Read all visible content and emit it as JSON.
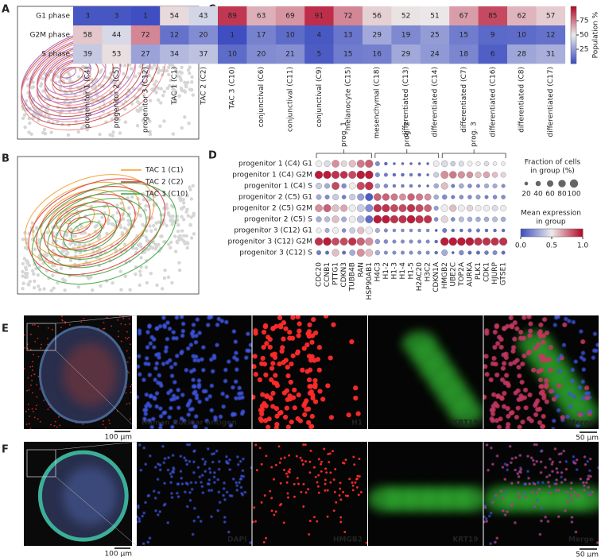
{
  "panel_labels": [
    "A",
    "B",
    "C",
    "D",
    "E",
    "F"
  ],
  "chart_data": [
    {
      "type": "density",
      "series": [
        {
          "name": "progenitor 1 (C4)",
          "color": "#a85bbf"
        },
        {
          "name": "progenitor 2 (C5)",
          "color": "#c2413b"
        },
        {
          "name": "progenitor 3 (C12)",
          "color": "#e98a8a"
        }
      ]
    },
    {
      "type": "density",
      "series": [
        {
          "name": "TAC 1 (C1)",
          "color": "#f0a030"
        },
        {
          "name": "TAC 2 (C2)",
          "color": "#d83030"
        },
        {
          "name": "TAC 3 (C10)",
          "color": "#3aa43a"
        }
      ]
    },
    {
      "type": "heatmap",
      "rows": [
        "G1 phase",
        "G2M phase",
        "S phase"
      ],
      "columns": [
        "progenitor 1 (C4)",
        "progenitor 2 (C5)",
        "progenitor 3 (C12)",
        "TAC 1 (C1)",
        "TAC 2 (C2)",
        "TAC 3 (C10)",
        "conjunctival (C6)",
        "conjunctival (C11)",
        "conjunctival (C9)",
        "melanocyte (C15)",
        "mesenchymal (C18)",
        "differentiated (C13)",
        "differentiated (C14)",
        "differentiated (C7)",
        "differentiated (C16)",
        "differentiated (C8)",
        "differentiated (C17)"
      ],
      "values": [
        [
          3,
          3,
          1,
          54,
          43,
          89,
          63,
          69,
          91,
          72,
          56,
          52,
          51,
          67,
          85,
          62,
          57
        ],
        [
          58,
          44,
          72,
          12,
          20,
          1,
          17,
          10,
          4,
          13,
          29,
          19,
          25,
          15,
          9,
          10,
          12
        ],
        [
          39,
          53,
          27,
          34,
          37,
          10,
          20,
          21,
          5,
          15,
          16,
          29,
          24,
          18,
          6,
          28,
          31
        ]
      ],
      "clim": [
        0,
        100
      ],
      "colorbar_ticks": [
        25,
        50,
        75
      ],
      "colorbar_label": "Population %"
    },
    {
      "type": "dotplot",
      "rows": [
        "progenitor 1 (C4) G1",
        "progenitor 1 (C4) G2M",
        "progenitor 1 (C4) S",
        "progenitor 2 (C5) G1",
        "progenitor 2 (C5) G2M",
        "progenitor 2 (C5) S",
        "progenitor 3 (C12) G1",
        "progenitor 3 (C12) G2M",
        "progenitor 3 (C12) S"
      ],
      "groups": [
        {
          "label": "prog. 1",
          "genes": [
            "CDC20",
            "CCNB1",
            "PTTG1",
            "CDKN3",
            "TUBB4B",
            "RAN",
            "HSP90AB1"
          ]
        },
        {
          "label": "prog. 2",
          "genes": [
            "H4C3",
            "H1-2",
            "H1-3",
            "H1-4",
            "H1-5",
            "H2AC20",
            "H3C2",
            "CDKN1A"
          ]
        },
        {
          "label": "prog. 3",
          "genes": [
            "HMGB2",
            "UBE2C",
            "TOP2A",
            "AURKA",
            "PLK1",
            "CDK1",
            "HJURP",
            "GTSE1"
          ]
        }
      ],
      "expression": [
        [
          0.5,
          0.45,
          0.7,
          0.55,
          0.6,
          0.75,
          0.8,
          0.2,
          0.1,
          0.1,
          0.1,
          0.1,
          0.1,
          0.1,
          0.5,
          0.45,
          0.4,
          0.45,
          0.5,
          0.5,
          0.45,
          0.5,
          0.5
        ],
        [
          0.95,
          0.95,
          0.9,
          0.9,
          0.85,
          0.95,
          0.95,
          0.2,
          0.15,
          0.1,
          0.1,
          0.15,
          0.1,
          0.1,
          0.4,
          0.7,
          0.75,
          0.7,
          0.7,
          0.6,
          0.65,
          0.6,
          0.55
        ],
        [
          0.4,
          0.3,
          0.85,
          0.2,
          0.5,
          0.85,
          0.9,
          0.3,
          0.2,
          0.15,
          0.15,
          0.15,
          0.1,
          0.1,
          0.3,
          0.6,
          0.15,
          0.3,
          0.2,
          0.2,
          0.3,
          0.3,
          0.2
        ],
        [
          0.3,
          0.2,
          0.4,
          0.15,
          0.4,
          0.25,
          0.05,
          0.8,
          0.8,
          0.75,
          0.7,
          0.8,
          0.75,
          0.7,
          0.3,
          0.2,
          0.15,
          0.2,
          0.2,
          0.25,
          0.15,
          0.2,
          0.2
        ],
        [
          0.7,
          0.8,
          0.6,
          0.65,
          0.5,
          0.4,
          0.2,
          0.9,
          0.9,
          0.85,
          0.85,
          0.9,
          0.85,
          0.8,
          0.25,
          0.5,
          0.6,
          0.5,
          0.55,
          0.5,
          0.5,
          0.45,
          0.5
        ],
        [
          0.3,
          0.35,
          0.6,
          0.3,
          0.5,
          0.35,
          0.1,
          0.95,
          0.95,
          0.9,
          0.9,
          0.95,
          0.9,
          0.9,
          0.2,
          0.55,
          0.2,
          0.35,
          0.3,
          0.3,
          0.3,
          0.35,
          0.3
        ],
        [
          0.5,
          0.3,
          0.5,
          0.2,
          0.4,
          0.6,
          0.5,
          0.3,
          0.2,
          0.2,
          0.2,
          0.2,
          0.2,
          0.2,
          0.05,
          0.15,
          0.1,
          0.1,
          0.15,
          0.15,
          0.1,
          0.1,
          0.1
        ],
        [
          0.9,
          0.95,
          0.85,
          0.85,
          0.9,
          0.8,
          0.7,
          0.25,
          0.2,
          0.2,
          0.2,
          0.2,
          0.2,
          0.2,
          0.1,
          0.95,
          0.95,
          0.95,
          0.95,
          0.9,
          0.9,
          0.9,
          0.9
        ],
        [
          0.15,
          0.1,
          0.6,
          0.1,
          0.3,
          0.7,
          0.6,
          0.3,
          0.2,
          0.2,
          0.2,
          0.2,
          0.2,
          0.2,
          0.1,
          0.3,
          0.05,
          0.2,
          0.1,
          0.1,
          0.15,
          0.2,
          0.1
        ]
      ],
      "fraction": [
        [
          60,
          55,
          80,
          50,
          70,
          85,
          90,
          30,
          15,
          10,
          10,
          10,
          10,
          10,
          50,
          60,
          35,
          40,
          40,
          30,
          35,
          25,
          25
        ],
        [
          90,
          90,
          90,
          80,
          85,
          95,
          95,
          30,
          20,
          15,
          15,
          15,
          15,
          10,
          40,
          85,
          75,
          70,
          60,
          55,
          60,
          45,
          40
        ],
        [
          55,
          40,
          85,
          35,
          65,
          90,
          95,
          35,
          25,
          15,
          15,
          15,
          10,
          10,
          35,
          70,
          20,
          35,
          25,
          20,
          30,
          30,
          20
        ],
        [
          40,
          30,
          55,
          25,
          55,
          70,
          85,
          80,
          75,
          70,
          65,
          75,
          70,
          65,
          35,
          35,
          20,
          25,
          25,
          30,
          20,
          25,
          25
        ],
        [
          80,
          85,
          75,
          70,
          70,
          80,
          85,
          90,
          90,
          85,
          85,
          90,
          85,
          80,
          30,
          75,
          70,
          65,
          60,
          55,
          60,
          50,
          55
        ],
        [
          45,
          45,
          75,
          40,
          65,
          75,
          85,
          95,
          95,
          90,
          90,
          95,
          90,
          90,
          25,
          70,
          25,
          40,
          35,
          35,
          35,
          40,
          35
        ],
        [
          40,
          30,
          55,
          25,
          50,
          70,
          75,
          30,
          20,
          15,
          15,
          15,
          15,
          15,
          10,
          30,
          15,
          15,
          20,
          20,
          15,
          15,
          15
        ],
        [
          90,
          95,
          85,
          85,
          90,
          90,
          90,
          35,
          25,
          20,
          20,
          20,
          20,
          20,
          15,
          95,
          95,
          95,
          95,
          90,
          90,
          90,
          90
        ],
        [
          30,
          20,
          75,
          20,
          50,
          85,
          80,
          35,
          20,
          20,
          20,
          20,
          20,
          20,
          15,
          55,
          10,
          35,
          20,
          20,
          25,
          30,
          20
        ]
      ],
      "size_legend_title": [
        "Fraction of cells",
        "in group (%)"
      ],
      "size_ticks": [
        20,
        40,
        60,
        80,
        100
      ],
      "color_legend_title": [
        "Mean expression",
        "in group"
      ],
      "clim": [
        0,
        1
      ],
      "color_ticks": [
        {
          "value": 0,
          "label": "0.0"
        },
        {
          "value": 0.5,
          "label": "0.5"
        },
        {
          "value": 1,
          "label": "1.0"
        }
      ]
    }
  ],
  "micrographs": [
    {
      "scale_overview": "100 μm",
      "scale_detail": "50 μm",
      "channels": [
        {
          "label": "Human Nuclear antigen",
          "color": "#3c55e0"
        },
        {
          "label": "H1",
          "color": "#ff2b2b"
        },
        {
          "label": "KRT19",
          "color": "#3fcf3f"
        },
        {
          "label": "Merge",
          "color": "#ffffff"
        }
      ]
    },
    {
      "scale_overview": "100 μm",
      "scale_detail": "50 μm",
      "channels": [
        {
          "label": "DAPI",
          "color": "#3c55e0"
        },
        {
          "label": "HMGB2",
          "color": "#ff2b2b"
        },
        {
          "label": "KRT19",
          "color": "#3fcf3f"
        },
        {
          "label": "Merge",
          "color": "#ffffff"
        }
      ]
    }
  ]
}
